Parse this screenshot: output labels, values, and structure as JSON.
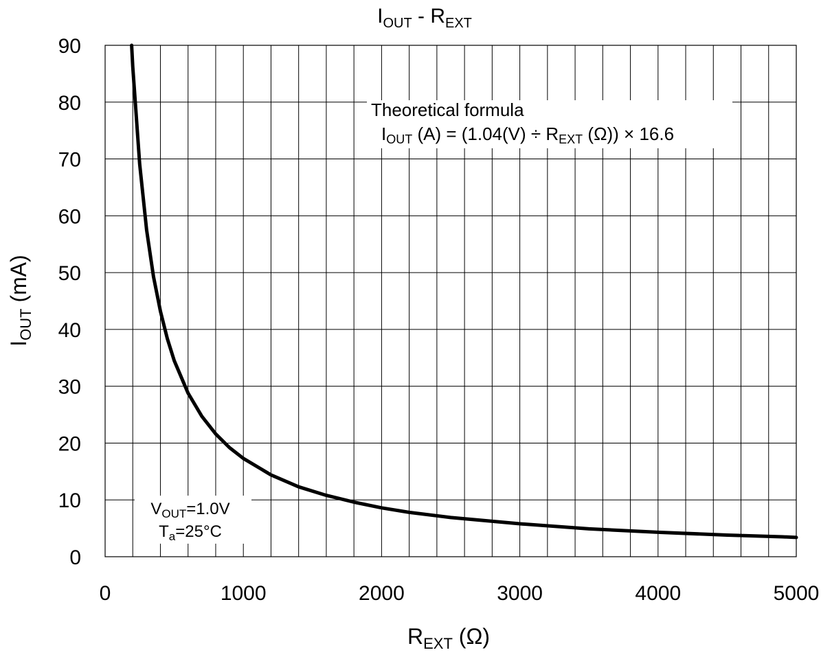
{
  "chart_data": {
    "type": "line",
    "title": {
      "main": "I",
      "sub1": "OUT",
      "mid": " - R",
      "sub2": "EXT"
    },
    "xlabel": {
      "main": "R",
      "sub": "EXT",
      "tail": " (Ω)"
    },
    "ylabel": {
      "main": "I",
      "sub": "OUT",
      "tail": " (mA)"
    },
    "xlim": [
      0,
      5000
    ],
    "ylim": [
      0,
      90
    ],
    "x_ticks": [
      "0",
      "1000",
      "2000",
      "3000",
      "4000",
      "5000"
    ],
    "y_ticks": [
      "0",
      "10",
      "20",
      "30",
      "40",
      "50",
      "60",
      "70",
      "80",
      "90"
    ],
    "grid": {
      "x_step": 200,
      "y_step": 10
    },
    "series": [
      {
        "x": [
          192,
          200,
          250,
          300,
          350,
          400,
          450,
          500,
          600,
          700,
          800,
          900,
          1000,
          1200,
          1400,
          1600,
          1800,
          2000,
          2200,
          2500,
          3000,
          3500,
          4000,
          4500,
          4900,
          5000
        ],
        "values": [
          90,
          86.3,
          69.1,
          57.5,
          49.3,
          43.2,
          38.4,
          34.5,
          28.8,
          24.7,
          21.6,
          19.2,
          17.3,
          14.4,
          12.3,
          10.8,
          9.6,
          8.6,
          7.8,
          6.9,
          5.8,
          4.9,
          4.3,
          3.8,
          3.5,
          3.4
        ]
      }
    ],
    "annotations": {
      "formula": {
        "line1": "Theoretical formula",
        "line2_i": "I",
        "line2_sub1": "OUT",
        "line2_mid": " (A) = (1.04(V) ÷ R",
        "line2_sub2": "EXT",
        "line2_tail": " (Ω)) × 16.6"
      },
      "conditions": {
        "v_main": "V",
        "v_sub": "OUT",
        "v_tail": "=1.0V",
        "t_main": "T",
        "t_sub": "a",
        "t_tail": "=25°C"
      }
    }
  }
}
